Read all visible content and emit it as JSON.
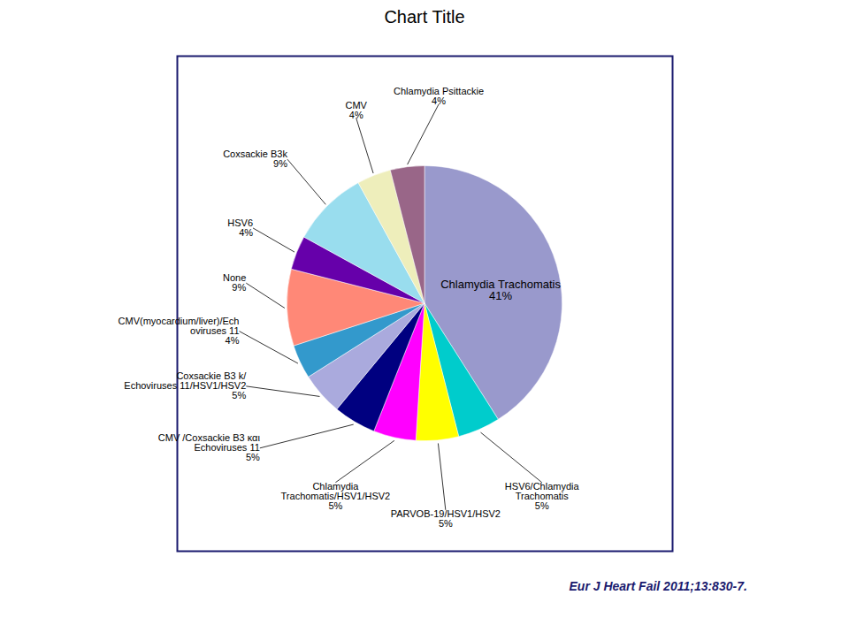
{
  "chart_data": {
    "type": "pie",
    "title": "Chart Title",
    "categories": [
      "Chlamydia Trachomatis\n41%",
      "HSV6/Chlamydia\nTrachomatis\n5%",
      "PARVOB-19/HSV1/HSV2\n5%",
      "Chlamydia\nTrachomatis/HSV1/HSV2\n5%",
      "CMV /Coxsackie B3 και\nEchoviruses 11\n5%",
      "Coxsackie B3 k/\nEchoviruses 11/HSV1/HSV2\n5%",
      "CMV(myocardium/liver)/Ech\noviruses 11\n4%",
      "None\n9%",
      "HSV6\n4%",
      "Coxsackie B3k\n9%",
      "CMV\n4%",
      "Chlamydia Psittackie\n4%"
    ],
    "values": [
      41,
      5,
      5,
      5,
      5,
      5,
      4,
      9,
      4,
      9,
      4,
      4
    ],
    "colors": [
      "#9999CC",
      "#00CCCC",
      "#FFFF00",
      "#FF00FF",
      "#000080",
      "#AAAADD",
      "#3399CC",
      "#FF8877",
      "#6600AA",
      "#99DDEE",
      "#EEEEBB",
      "#996688"
    ],
    "annotations": [
      {
        "text": "Eur J Heart Fail 2011;13:830-7.",
        "color": "#1a1a6e"
      }
    ]
  }
}
